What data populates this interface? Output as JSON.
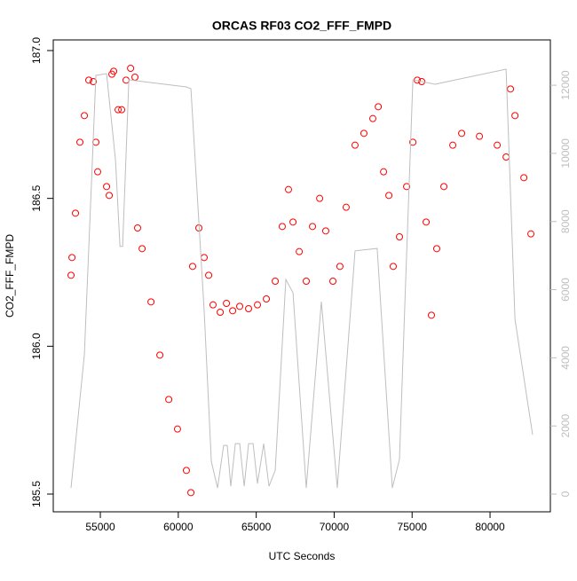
{
  "chart_data": {
    "type": "scatter",
    "title": "ORCAS RF03 CO2_FFF_FMPD",
    "x_label": "UTC Seconds",
    "y_label": "CO2_FFF_FMPD",
    "xlim": [
      51980,
      83870
    ],
    "ylim": [
      185.44,
      187.036
    ],
    "y2lim": [
      -520,
      13330
    ],
    "xticks": [
      55000,
      60000,
      65000,
      70000,
      75000,
      80000
    ],
    "yticks": [
      {
        "value": 185.5,
        "label": "185.5"
      },
      {
        "value": 186,
        "label": "186.0"
      },
      {
        "value": 186.5,
        "label": "186.5"
      },
      {
        "value": 187,
        "label": "187.0"
      }
    ],
    "y2ticks": [
      0,
      2000,
      4000,
      6000,
      8000,
      10000,
      12000
    ],
    "series": [
      {
        "type": "scatter",
        "color": "#ff0000",
        "axis": "y",
        "x": [
          53120,
          53180,
          53405,
          53690,
          53975,
          54260,
          54545,
          54715,
          54830,
          55400,
          55570,
          55740,
          55855,
          56140,
          56370,
          56650,
          56940,
          57220,
          57390,
          57680,
          58250,
          58820,
          59390,
          59950,
          60520,
          60810,
          60920,
          61320,
          61660,
          61950,
          62230,
          62690,
          63090,
          63490,
          63940,
          64510,
          65080,
          65650,
          66220,
          66670,
          67070,
          67360,
          67760,
          68210,
          68610,
          69070,
          69460,
          69920,
          70370,
          70770,
          71340,
          71910,
          72480,
          72830,
          73170,
          73510,
          73790,
          74190,
          74650,
          75050,
          75330,
          75620,
          75900,
          76240,
          76580,
          77040,
          77610,
          78180,
          79320,
          80460,
          81030,
          81310,
          81600,
          82170,
          82620
        ],
        "values": [
          186.24,
          186.3,
          186.45,
          186.69,
          186.78,
          186.9,
          186.895,
          186.69,
          186.59,
          186.54,
          186.51,
          186.92,
          186.93,
          186.8,
          186.8,
          186.9,
          186.94,
          186.91,
          186.4,
          186.33,
          186.15,
          185.97,
          185.82,
          185.72,
          185.58,
          185.505,
          186.27,
          186.4,
          186.3,
          186.24,
          186.14,
          186.115,
          186.145,
          186.12,
          186.135,
          186.127,
          186.14,
          186.16,
          186.22,
          186.405,
          186.53,
          186.42,
          186.32,
          186.22,
          186.405,
          186.5,
          186.39,
          186.22,
          186.27,
          186.47,
          186.68,
          186.72,
          186.77,
          186.81,
          186.59,
          186.51,
          186.27,
          186.37,
          186.54,
          186.69,
          186.9,
          186.895,
          186.42,
          186.105,
          186.33,
          186.54,
          186.68,
          186.72,
          186.71,
          186.68,
          186.64,
          186.87,
          186.78,
          186.57,
          186.38
        ]
      },
      {
        "type": "line",
        "color": "#bebebe",
        "axis": "y2",
        "x": [
          53120,
          53975,
          54715,
          55400,
          55970,
          56260,
          56430,
          56830,
          57680,
          60520,
          60810,
          61660,
          62120,
          62520,
          62910,
          63140,
          63370,
          63660,
          63940,
          64230,
          64510,
          64800,
          65080,
          65480,
          65820,
          66220,
          66900,
          67360,
          68210,
          69180,
          70200,
          71340,
          72760,
          73730,
          74190,
          74530,
          75050,
          76470,
          81030,
          81600,
          82730
        ],
        "values": [
          180,
          4090,
          12290,
          12340,
          9820,
          7270,
          7270,
          12160,
          12110,
          11950,
          11900,
          5390,
          960,
          180,
          1430,
          1430,
          230,
          1480,
          1480,
          230,
          1480,
          1480,
          310,
          1480,
          230,
          700,
          6300,
          5910,
          180,
          5650,
          180,
          7140,
          7210,
          180,
          1020,
          5520,
          12160,
          12030,
          12470,
          5130,
          1740
        ]
      }
    ]
  }
}
